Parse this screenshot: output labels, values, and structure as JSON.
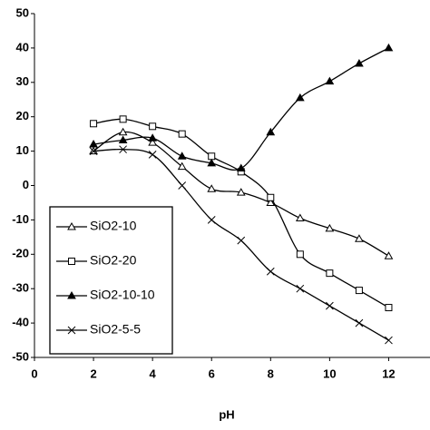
{
  "chart_data": {
    "type": "line",
    "x_label": "pH",
    "x": [
      2,
      3,
      4,
      5,
      6,
      7,
      8,
      9,
      10,
      11,
      12
    ],
    "series": [
      {
        "name": "SiO2-10",
        "color": "#000000",
        "marker": "triangle-open",
        "values": [
          10,
          15.5,
          12.5,
          5.5,
          -1,
          -2,
          -5,
          -9.5,
          -12.5,
          -15.5,
          -20.5
        ]
      },
      {
        "name": "SiO2-20",
        "color": "#000000",
        "marker": "square-open",
        "values": [
          18,
          19.3,
          17.2,
          15,
          8.5,
          4,
          -3.5,
          -20,
          -25.5,
          -30.5,
          -35.5
        ]
      },
      {
        "name": "SiO2-10-10",
        "color": "#000000",
        "marker": "triangle-filled",
        "values": [
          12,
          13.2,
          13.8,
          8.5,
          6.5,
          5,
          15.5,
          25.5,
          30.3,
          35.5,
          40
        ]
      },
      {
        "name": "SiO2-5-5",
        "color": "#000000",
        "marker": "cross",
        "values": [
          10,
          10.5,
          9,
          0,
          -10,
          -16,
          -25,
          -30,
          -35,
          -40,
          -45
        ]
      }
    ],
    "xlim": [
      0,
      13.4
    ],
    "xticks": [
      0,
      2,
      4,
      6,
      8,
      10,
      12
    ],
    "ylim": [
      -50,
      50
    ],
    "yticks": [
      -50,
      -40,
      -30,
      -20,
      -10,
      0,
      10,
      20,
      30,
      40,
      50
    ],
    "smooth": true
  }
}
